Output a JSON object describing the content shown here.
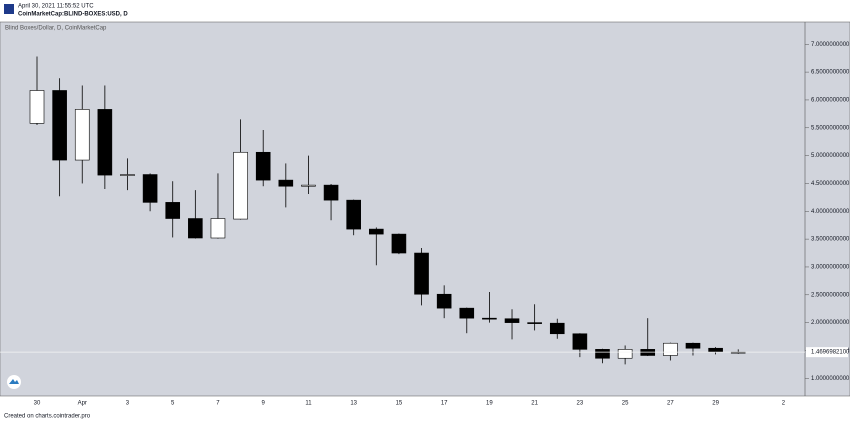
{
  "header": {
    "timestamp": "April 30, 2021 11:55:52 UTC",
    "symbol": "CoinMarketCap:BLIND-BOXES:USD, D"
  },
  "chart_data": {
    "type": "candlestick",
    "title": "Blind Boxes/Dollar, D, CoinMarketCap",
    "categories": [
      "30",
      null,
      "Apr",
      null,
      "3",
      null,
      "5",
      null,
      "7",
      null,
      "9",
      null,
      "11",
      null,
      "13",
      null,
      "15",
      null,
      "17",
      null,
      "19",
      null,
      "21",
      null,
      "23",
      null,
      "25",
      null,
      "27",
      null,
      "29",
      null,
      null,
      "2"
    ],
    "open": [
      5.58,
      6.17,
      4.92,
      5.83,
      4.65,
      4.66,
      4.16,
      3.87,
      3.52,
      3.86,
      5.06,
      4.56,
      4.45,
      4.47,
      4.2,
      3.68,
      3.59,
      3.25,
      2.51,
      2.26,
      2.08,
      2.07,
      2.0,
      1.99,
      1.8,
      1.52,
      1.36,
      1.52,
      1.41,
      1.63,
      1.54,
      1.47,
      null,
      null
    ],
    "high": [
      6.78,
      6.39,
      6.26,
      6.26,
      4.95,
      4.68,
      4.54,
      4.38,
      4.68,
      5.65,
      5.46,
      4.86,
      5.0,
      4.49,
      4.21,
      3.71,
      3.6,
      3.34,
      2.67,
      2.27,
      2.55,
      2.24,
      2.33,
      2.07,
      1.81,
      1.53,
      1.59,
      2.08,
      1.64,
      1.64,
      1.56,
      1.52,
      null,
      null
    ],
    "low": [
      5.55,
      4.27,
      4.5,
      4.4,
      4.38,
      4.0,
      3.53,
      3.51,
      3.51,
      3.85,
      4.45,
      4.07,
      4.31,
      3.84,
      3.57,
      3.03,
      3.23,
      2.31,
      2.08,
      1.81,
      2.0,
      1.7,
      1.86,
      1.71,
      1.38,
      1.27,
      1.25,
      1.4,
      1.32,
      1.41,
      1.43,
      1.44,
      null,
      null
    ],
    "close": [
      6.17,
      4.92,
      5.83,
      4.65,
      4.66,
      4.16,
      3.87,
      3.52,
      3.87,
      5.06,
      4.56,
      4.45,
      4.47,
      4.2,
      3.68,
      3.59,
      3.25,
      2.51,
      2.26,
      2.08,
      2.07,
      2.0,
      1.99,
      1.8,
      1.52,
      1.36,
      1.52,
      1.41,
      1.63,
      1.54,
      1.47,
      1.4697,
      null,
      null
    ],
    "up_color": "#ffffff",
    "down_color": "#000000",
    "ylim": [
      0.7,
      7.4
    ],
    "yticks": [
      {
        "value": 1,
        "label": "1.0000000000"
      },
      {
        "value": 1.5,
        "label": "1.5000000000"
      },
      {
        "value": 2,
        "label": "2.0000000000"
      },
      {
        "value": 2.5,
        "label": "2.5000000000"
      },
      {
        "value": 3,
        "label": "3.0000000000"
      },
      {
        "value": 3.5,
        "label": "3.5000000000"
      },
      {
        "value": 4,
        "label": "4.0000000000"
      },
      {
        "value": 4.5,
        "label": "4.5000000000"
      },
      {
        "value": 5,
        "label": "5.0000000000"
      },
      {
        "value": 5.5,
        "label": "5.5000000000"
      },
      {
        "value": 6,
        "label": "6.0000000000"
      },
      {
        "value": 6.5,
        "label": "6.5000000000"
      },
      {
        "value": 7,
        "label": "7.0000000000"
      }
    ],
    "last_price": {
      "value": 1.46969821,
      "label": "1.4696982100"
    }
  },
  "footer": "Created on charts.cointrader.pro"
}
